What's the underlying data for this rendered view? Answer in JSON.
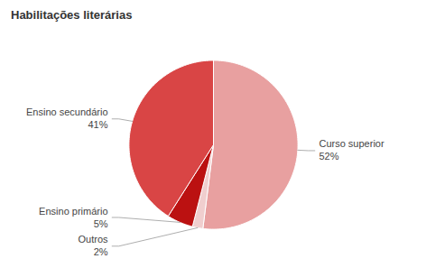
{
  "chart_data": {
    "type": "pie",
    "title": "Habilitações literárias",
    "categories": [
      "Curso superior",
      "Outros",
      "Ensino primário",
      "Ensino secundário"
    ],
    "values": [
      52,
      2,
      5,
      41
    ],
    "value_labels": [
      "52%",
      "2%",
      "5%",
      "41%"
    ],
    "colors": [
      "#e8a0a0",
      "#f0cece",
      "#bb1111",
      "#d94545"
    ],
    "data_labels": true
  }
}
